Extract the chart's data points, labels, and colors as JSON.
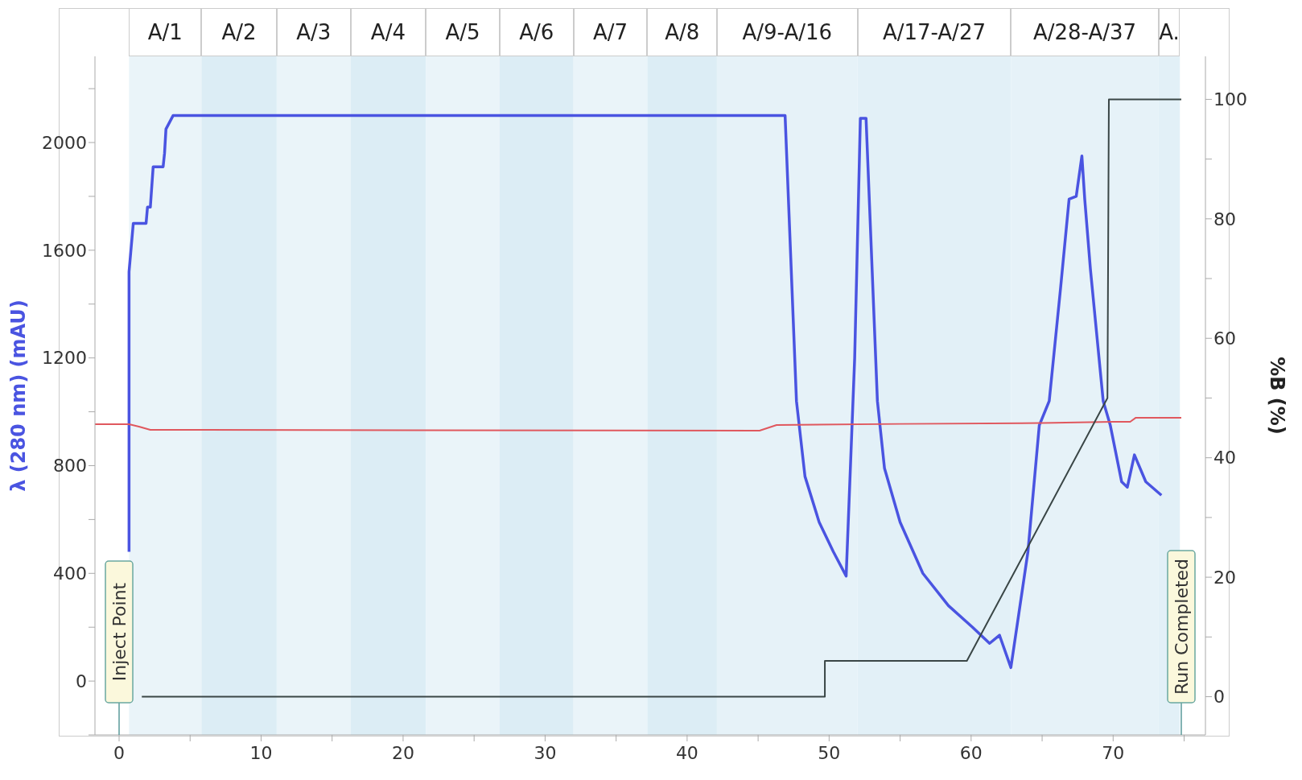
{
  "chart_data": {
    "type": "line",
    "ylabel": "λ (280 nm) (mAU)",
    "y2label": "%B (%)",
    "xlim": [
      -1.7,
      76.5
    ],
    "xticks": [
      0,
      {
        "value": 5,
        "label": null
      },
      10,
      {
        "value": 15,
        "label": null
      },
      20,
      {
        "value": 25,
        "label": null
      },
      30,
      {
        "value": 35,
        "label": null
      },
      40,
      {
        "value": 45,
        "label": null
      },
      50,
      {
        "value": 55,
        "label": null
      },
      60,
      {
        "value": 65,
        "label": null
      },
      70,
      {
        "value": 75,
        "label": null
      }
    ],
    "ylim": [
      -200,
      2320
    ],
    "yticks": [
      {
        "value": -200,
        "label": null
      },
      0,
      {
        "value": 200,
        "label": null
      },
      400,
      {
        "value": 600,
        "label": null
      },
      800,
      {
        "value": 1000,
        "label": null
      },
      1200,
      {
        "value": 1400,
        "label": null
      },
      1600,
      {
        "value": 1800,
        "label": null
      },
      2000,
      {
        "value": 2200,
        "label": null
      }
    ],
    "y2lim": [
      -6.4,
      107.2
    ],
    "y2ticks": [
      0,
      {
        "value": 10,
        "label": null
      },
      20,
      {
        "value": 30,
        "label": null
      },
      40,
      {
        "value": 50,
        "label": null
      },
      60,
      {
        "value": 70,
        "label": null
      },
      80,
      {
        "value": 90,
        "label": null
      },
      100
    ],
    "marker": "none",
    "line_style": "solid",
    "series": [
      {
        "color": "#4a54e1",
        "x": [
          0.7,
          0.7,
          1.0,
          1.9,
          2.0,
          2.2,
          2.4,
          3.1,
          3.2,
          3.3,
          3.8,
          10,
          20,
          30,
          40,
          46.9,
          47.7,
          48.3,
          49.3,
          50.3,
          51.2,
          51.8,
          52.2,
          52.4,
          52.6,
          53.4,
          53.9,
          55.0,
          56.6,
          58.4,
          60.1,
          61.3,
          62.0,
          62.8,
          64.0,
          64.8,
          65.5,
          66.3,
          66.9,
          67.4,
          67.8,
          68.0,
          68.4,
          69.3,
          69.8,
          70.6,
          71.0,
          71.5,
          72.3,
          73.4
        ],
        "values": [
          480,
          1520,
          1700,
          1700,
          1760,
          1760,
          1910,
          1910,
          1960,
          2050,
          2100,
          2100,
          2100,
          2100,
          2100,
          2100,
          1040,
          760,
          590,
          480,
          390,
          1200,
          2090,
          2090,
          2090,
          1040,
          790,
          590,
          400,
          280,
          200,
          140,
          170,
          50,
          480,
          950,
          1040,
          1460,
          1790,
          1800,
          1950,
          1790,
          1530,
          1040,
          950,
          740,
          720,
          840,
          740,
          690
        ]
      },
      {
        "color": "#e0585e",
        "x": [
          -1.7,
          0.7,
          1.4,
          2.2,
          45.1,
          46.3,
          55,
          65,
          70,
          71.2,
          71.6,
          74.8
        ],
        "values": [
          954,
          954,
          945,
          933,
          930,
          951,
          955,
          958,
          963,
          963,
          978,
          978
        ]
      },
      {
        "color": "#3a4646",
        "axis": "y2",
        "x": [
          1.6,
          49.7,
          49.7,
          59.7,
          69.6,
          69.7,
          74.8
        ],
        "values": [
          0,
          0,
          6,
          6,
          50,
          100,
          100
        ]
      }
    ],
    "bands": [
      {
        "axis": "x",
        "from": 0.7,
        "to": 5.8,
        "label": "A/1",
        "color": "#eaf4f9"
      },
      {
        "axis": "x",
        "from": 5.8,
        "to": 11.1,
        "label": "A/2",
        "color": "#dcedf5"
      },
      {
        "axis": "x",
        "from": 11.1,
        "to": 16.3,
        "label": "A/3",
        "color": "#eaf4f9"
      },
      {
        "axis": "x",
        "from": 16.3,
        "to": 21.6,
        "label": "A/4",
        "color": "#dcedf5"
      },
      {
        "axis": "x",
        "from": 21.6,
        "to": 26.8,
        "label": "A/5",
        "color": "#eaf4f9"
      },
      {
        "axis": "x",
        "from": 26.8,
        "to": 32.0,
        "label": "A/6",
        "color": "#dcedf5"
      },
      {
        "axis": "x",
        "from": 32.0,
        "to": 37.2,
        "label": "A/7",
        "color": "#eaf4f9"
      },
      {
        "axis": "x",
        "from": 37.2,
        "to": 42.1,
        "label": "A/8",
        "color": "#dcedf5"
      },
      {
        "axis": "x",
        "from": 42.1,
        "to": 52.0,
        "label": "A/9-A/16",
        "color": "#e6f2f8"
      },
      {
        "axis": "x",
        "from": 52.0,
        "to": 62.8,
        "label": "A/17-A/27",
        "color": "#e2f0f7"
      },
      {
        "axis": "x",
        "from": 62.8,
        "to": 73.2,
        "label": "A/28-A/37",
        "color": "#e6f2f8"
      },
      {
        "axis": "x",
        "from": 73.2,
        "to": 74.7,
        "label": "A.",
        "color": "#e2f0f7"
      }
    ],
    "ref_lines": [
      {
        "axis": "x",
        "value": 0,
        "label": "Inject Point",
        "color": "#5a9a9a"
      },
      {
        "axis": "x",
        "value": 74.8,
        "label": "Run Completed",
        "color": "#5a9a9a"
      }
    ]
  }
}
